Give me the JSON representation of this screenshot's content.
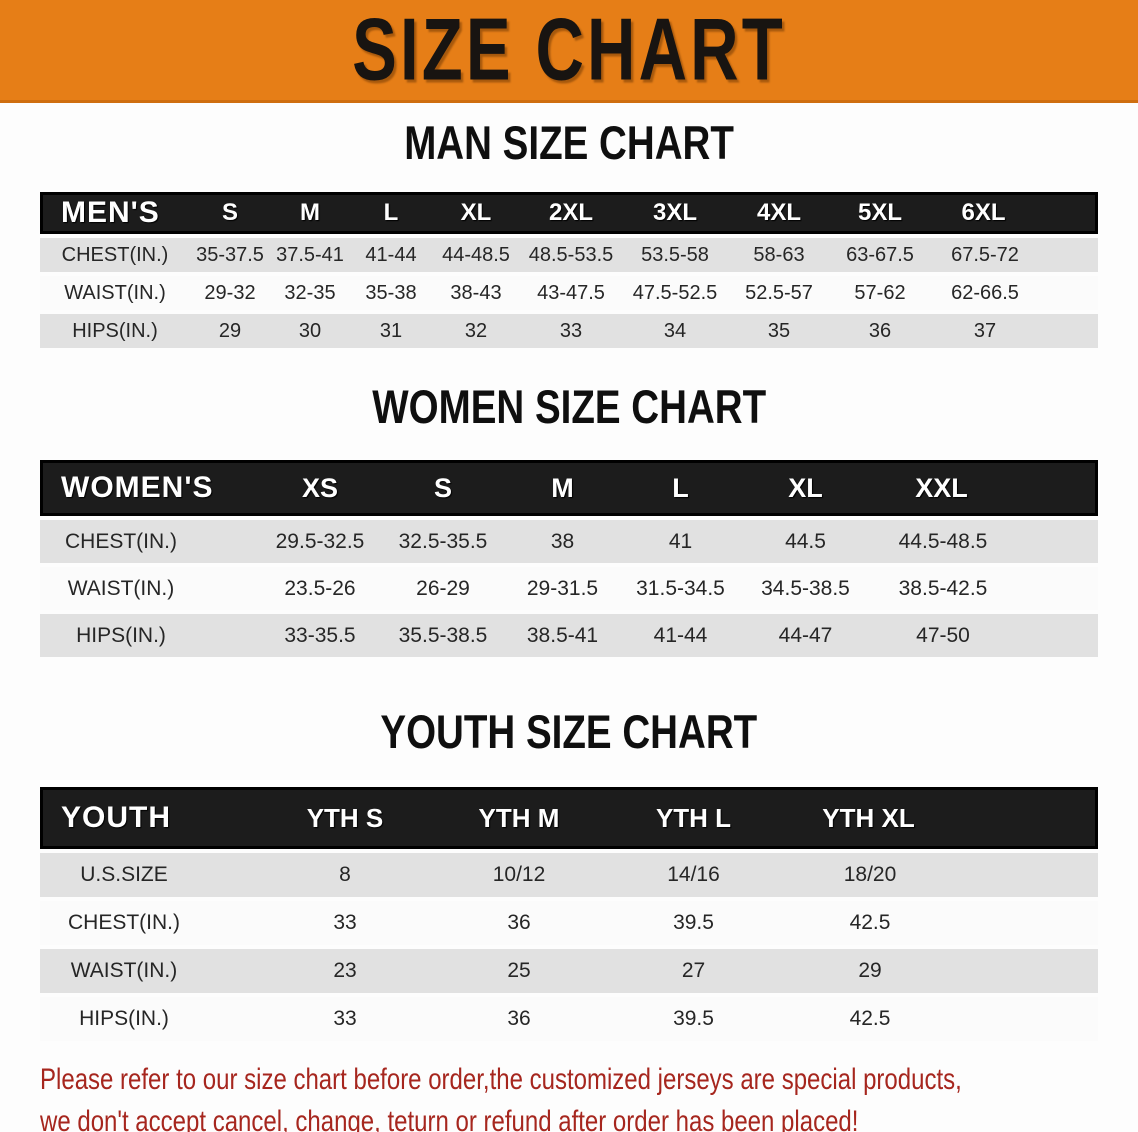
{
  "banner": {
    "title": "SIZE CHART"
  },
  "colors": {
    "banner_bg": "#e67e17",
    "table_header_bg": "#1c1c1c",
    "row_stripe": "#e1e1e1",
    "row_plain": "#fbfbfb",
    "note_text": "#a6261e"
  },
  "men": {
    "heading": "MAN SIZE CHART",
    "table": {
      "header": [
        "MEN'S",
        "S",
        "M",
        "L",
        "XL",
        "2XL",
        "3XL",
        "4XL",
        "5XL",
        "6XL"
      ],
      "rows": [
        [
          "CHEST(IN.)",
          "35-37.5",
          "37.5-41",
          "41-44",
          "44-48.5",
          "48.5-53.5",
          "53.5-58",
          "58-63",
          "63-67.5",
          "67.5-72"
        ],
        [
          "WAIST(IN.)",
          "29-32",
          "32-35",
          "35-38",
          "38-43",
          "43-47.5",
          "47.5-52.5",
          "52.5-57",
          "57-62",
          "62-66.5"
        ],
        [
          "HIPS(IN.)",
          "29",
          "30",
          "31",
          "32",
          "33",
          "34",
          "35",
          "36",
          "37"
        ]
      ]
    }
  },
  "women": {
    "heading": "WOMEN SIZE CHART",
    "table": {
      "header": [
        "WOMEN'S",
        "XS",
        "S",
        "M",
        "L",
        "XL",
        "XXL"
      ],
      "rows": [
        [
          "CHEST(IN.)",
          "29.5-32.5",
          "32.5-35.5",
          "38",
          "41",
          "44.5",
          "44.5-48.5"
        ],
        [
          "WAIST(IN.)",
          "23.5-26",
          "26-29",
          "29-31.5",
          "31.5-34.5",
          "34.5-38.5",
          "38.5-42.5"
        ],
        [
          "HIPS(IN.)",
          "33-35.5",
          "35.5-38.5",
          "38.5-41",
          "41-44",
          "44-47",
          "47-50"
        ]
      ]
    }
  },
  "youth": {
    "heading": "YOUTH SIZE CHART",
    "table": {
      "header": [
        "YOUTH",
        "YTH S",
        "YTH M",
        "YTH L",
        "YTH XL"
      ],
      "rows": [
        [
          "U.S.SIZE",
          "8",
          "10/12",
          "14/16",
          "18/20"
        ],
        [
          "CHEST(IN.)",
          "33",
          "36",
          "39.5",
          "42.5"
        ],
        [
          "WAIST(IN.)",
          "23",
          "25",
          "27",
          "29"
        ],
        [
          "HIPS(IN.)",
          "33",
          "36",
          "39.5",
          "42.5"
        ]
      ]
    }
  },
  "note": {
    "line1": "Please refer to our size chart before order,the customized jerseys are special products,",
    "line2": "we don't accept cancel, change, teturn or refund after order has been placed!"
  }
}
